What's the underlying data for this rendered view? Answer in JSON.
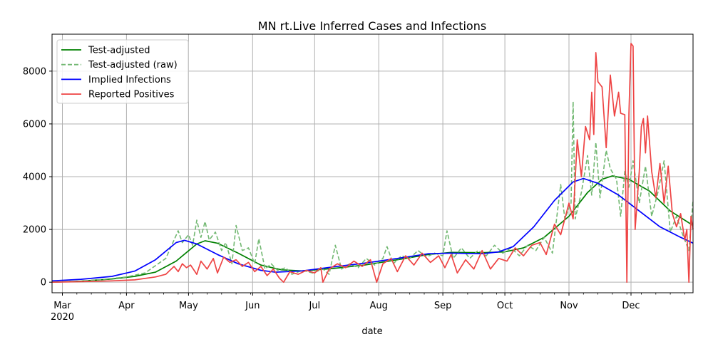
{
  "chart_data": {
    "type": "line",
    "title": "MN rt.Live Inferred Cases and Infections",
    "xlabel": "date",
    "ylabel": "",
    "x_start": "2020-02-25",
    "x_end": "2020-12-31",
    "ylim": [
      -400,
      9400
    ],
    "yticks": [
      0,
      2000,
      4000,
      6000,
      8000
    ],
    "xticks": [
      {
        "date": "2020-03-01",
        "label": "Mar",
        "sublabel": "2020"
      },
      {
        "date": "2020-04-01",
        "label": "Apr"
      },
      {
        "date": "2020-05-01",
        "label": "May"
      },
      {
        "date": "2020-06-01",
        "label": "Jun"
      },
      {
        "date": "2020-07-01",
        "label": "Jul"
      },
      {
        "date": "2020-08-01",
        "label": "Aug"
      },
      {
        "date": "2020-09-01",
        "label": "Sep"
      },
      {
        "date": "2020-10-01",
        "label": "Oct"
      },
      {
        "date": "2020-11-01",
        "label": "Nov"
      },
      {
        "date": "2020-12-01",
        "label": "Dec"
      }
    ],
    "grid": true,
    "legend_position": "top-left",
    "series": [
      {
        "name": "Test-adjusted",
        "color": "#008000",
        "style": "solid",
        "points": [
          [
            "2020-02-25",
            0
          ],
          [
            "2020-03-10",
            40
          ],
          [
            "2020-03-25",
            120
          ],
          [
            "2020-04-05",
            220
          ],
          [
            "2020-04-15",
            380
          ],
          [
            "2020-04-25",
            800
          ],
          [
            "2020-05-05",
            1450
          ],
          [
            "2020-05-09",
            1570
          ],
          [
            "2020-05-15",
            1480
          ],
          [
            "2020-05-25",
            1100
          ],
          [
            "2020-06-05",
            650
          ],
          [
            "2020-06-15",
            470
          ],
          [
            "2020-06-25",
            430
          ],
          [
            "2020-07-10",
            520
          ],
          [
            "2020-07-25",
            650
          ],
          [
            "2020-08-10",
            850
          ],
          [
            "2020-08-25",
            1050
          ],
          [
            "2020-09-05",
            1130
          ],
          [
            "2020-09-20",
            1120
          ],
          [
            "2020-10-01",
            1150
          ],
          [
            "2020-10-10",
            1300
          ],
          [
            "2020-10-20",
            1700
          ],
          [
            "2020-11-01",
            2500
          ],
          [
            "2020-11-10",
            3400
          ],
          [
            "2020-11-17",
            3900
          ],
          [
            "2020-11-22",
            4030
          ],
          [
            "2020-11-30",
            3900
          ],
          [
            "2020-12-10",
            3450
          ],
          [
            "2020-12-20",
            2700
          ],
          [
            "2020-12-31",
            2150
          ]
        ]
      },
      {
        "name": "Test-adjusted (raw)",
        "color": "#72b872",
        "style": "dashed",
        "points": [
          [
            "2020-02-25",
            0
          ],
          [
            "2020-03-10",
            30
          ],
          [
            "2020-03-20",
            100
          ],
          [
            "2020-04-01",
            200
          ],
          [
            "2020-04-10",
            350
          ],
          [
            "2020-04-20",
            900
          ],
          [
            "2020-04-26",
            1950
          ],
          [
            "2020-04-28",
            1500
          ],
          [
            "2020-05-01",
            1800
          ],
          [
            "2020-05-03",
            1400
          ],
          [
            "2020-05-05",
            2350
          ],
          [
            "2020-05-07",
            1700
          ],
          [
            "2020-05-09",
            2300
          ],
          [
            "2020-05-11",
            1600
          ],
          [
            "2020-05-14",
            1900
          ],
          [
            "2020-05-17",
            1200
          ],
          [
            "2020-05-19",
            1500
          ],
          [
            "2020-05-22",
            700
          ],
          [
            "2020-05-24",
            2150
          ],
          [
            "2020-05-27",
            1200
          ],
          [
            "2020-05-30",
            1300
          ],
          [
            "2020-06-02",
            700
          ],
          [
            "2020-06-04",
            1650
          ],
          [
            "2020-06-07",
            500
          ],
          [
            "2020-06-10",
            700
          ],
          [
            "2020-06-13",
            450
          ],
          [
            "2020-06-17",
            550
          ],
          [
            "2020-06-20",
            300
          ],
          [
            "2020-06-25",
            450
          ],
          [
            "2020-06-30",
            350
          ],
          [
            "2020-07-05",
            500
          ],
          [
            "2020-07-08",
            300
          ],
          [
            "2020-07-11",
            1400
          ],
          [
            "2020-07-14",
            500
          ],
          [
            "2020-07-18",
            700
          ],
          [
            "2020-07-22",
            550
          ],
          [
            "2020-07-26",
            900
          ],
          [
            "2020-07-30",
            650
          ],
          [
            "2020-08-03",
            900
          ],
          [
            "2020-08-05",
            1350
          ],
          [
            "2020-08-08",
            700
          ],
          [
            "2020-08-12",
            1000
          ],
          [
            "2020-08-16",
            900
          ],
          [
            "2020-08-20",
            1200
          ],
          [
            "2020-08-24",
            950
          ],
          [
            "2020-08-28",
            1100
          ],
          [
            "2020-09-01",
            1000
          ],
          [
            "2020-09-03",
            1950
          ],
          [
            "2020-09-06",
            900
          ],
          [
            "2020-09-10",
            1300
          ],
          [
            "2020-09-14",
            900
          ],
          [
            "2020-09-18",
            1200
          ],
          [
            "2020-09-22",
            1000
          ],
          [
            "2020-09-26",
            1400
          ],
          [
            "2020-09-30",
            1100
          ],
          [
            "2020-10-04",
            1300
          ],
          [
            "2020-10-08",
            1000
          ],
          [
            "2020-10-12",
            1400
          ],
          [
            "2020-10-16",
            1200
          ],
          [
            "2020-10-20",
            1700
          ],
          [
            "2020-10-24",
            1100
          ],
          [
            "2020-10-28",
            3700
          ],
          [
            "2020-10-30",
            2400
          ],
          [
            "2020-11-02",
            3000
          ],
          [
            "2020-11-03",
            6850
          ],
          [
            "2020-11-04",
            2400
          ],
          [
            "2020-11-07",
            3400
          ],
          [
            "2020-11-10",
            4800
          ],
          [
            "2020-11-12",
            3300
          ],
          [
            "2020-11-14",
            5300
          ],
          [
            "2020-11-16",
            3200
          ],
          [
            "2020-11-19",
            5000
          ],
          [
            "2020-11-21",
            4300
          ],
          [
            "2020-11-24",
            3900
          ],
          [
            "2020-11-26",
            2500
          ],
          [
            "2020-11-28",
            4200
          ],
          [
            "2020-11-30",
            3600
          ],
          [
            "2020-12-02",
            4600
          ],
          [
            "2020-12-05",
            3000
          ],
          [
            "2020-12-08",
            4400
          ],
          [
            "2020-12-11",
            2500
          ],
          [
            "2020-12-14",
            3400
          ],
          [
            "2020-12-17",
            4600
          ],
          [
            "2020-12-20",
            1900
          ],
          [
            "2020-12-23",
            2500
          ],
          [
            "2020-12-26",
            1800
          ],
          [
            "2020-12-29",
            1200
          ],
          [
            "2020-12-31",
            3100
          ]
        ]
      },
      {
        "name": "Implied Infections",
        "color": "#0000ff",
        "style": "solid",
        "points": [
          [
            "2020-02-25",
            50
          ],
          [
            "2020-03-10",
            110
          ],
          [
            "2020-03-25",
            220
          ],
          [
            "2020-04-05",
            420
          ],
          [
            "2020-04-15",
            850
          ],
          [
            "2020-04-25",
            1500
          ],
          [
            "2020-04-29",
            1590
          ],
          [
            "2020-05-05",
            1450
          ],
          [
            "2020-05-15",
            1050
          ],
          [
            "2020-05-25",
            700
          ],
          [
            "2020-06-05",
            450
          ],
          [
            "2020-06-12",
            380
          ],
          [
            "2020-06-25",
            430
          ],
          [
            "2020-07-10",
            580
          ],
          [
            "2020-07-25",
            720
          ],
          [
            "2020-08-10",
            900
          ],
          [
            "2020-08-25",
            1080
          ],
          [
            "2020-09-05",
            1100
          ],
          [
            "2020-09-20",
            1080
          ],
          [
            "2020-09-28",
            1150
          ],
          [
            "2020-10-05",
            1350
          ],
          [
            "2020-10-15",
            2100
          ],
          [
            "2020-10-25",
            3100
          ],
          [
            "2020-11-03",
            3800
          ],
          [
            "2020-11-08",
            3930
          ],
          [
            "2020-11-15",
            3750
          ],
          [
            "2020-11-25",
            3300
          ],
          [
            "2020-12-05",
            2700
          ],
          [
            "2020-12-15",
            2100
          ],
          [
            "2020-12-25",
            1700
          ],
          [
            "2020-12-31",
            1480
          ]
        ]
      },
      {
        "name": "Reported Positives",
        "color": "#ee4444",
        "style": "solid",
        "points": [
          [
            "2020-02-25",
            0
          ],
          [
            "2020-03-10",
            20
          ],
          [
            "2020-03-25",
            50
          ],
          [
            "2020-04-05",
            90
          ],
          [
            "2020-04-15",
            200
          ],
          [
            "2020-04-20",
            300
          ],
          [
            "2020-04-24",
            600
          ],
          [
            "2020-04-26",
            400
          ],
          [
            "2020-04-28",
            700
          ],
          [
            "2020-04-30",
            550
          ],
          [
            "2020-05-02",
            650
          ],
          [
            "2020-05-05",
            300
          ],
          [
            "2020-05-07",
            800
          ],
          [
            "2020-05-10",
            500
          ],
          [
            "2020-05-13",
            900
          ],
          [
            "2020-05-15",
            350
          ],
          [
            "2020-05-18",
            950
          ],
          [
            "2020-05-21",
            750
          ],
          [
            "2020-05-24",
            850
          ],
          [
            "2020-05-27",
            600
          ],
          [
            "2020-05-30",
            750
          ],
          [
            "2020-06-02",
            400
          ],
          [
            "2020-06-05",
            600
          ],
          [
            "2020-06-08",
            250
          ],
          [
            "2020-06-11",
            500
          ],
          [
            "2020-06-14",
            150
          ],
          [
            "2020-06-16",
            0
          ],
          [
            "2020-06-19",
            400
          ],
          [
            "2020-06-23",
            300
          ],
          [
            "2020-06-27",
            450
          ],
          [
            "2020-07-01",
            350
          ],
          [
            "2020-07-04",
            550
          ],
          [
            "2020-07-05",
            0
          ],
          [
            "2020-07-08",
            500
          ],
          [
            "2020-07-12",
            700
          ],
          [
            "2020-07-16",
            550
          ],
          [
            "2020-07-20",
            800
          ],
          [
            "2020-07-24",
            600
          ],
          [
            "2020-07-28",
            850
          ],
          [
            "2020-07-31",
            0
          ],
          [
            "2020-08-03",
            700
          ],
          [
            "2020-08-07",
            900
          ],
          [
            "2020-08-10",
            400
          ],
          [
            "2020-08-14",
            1000
          ],
          [
            "2020-08-18",
            650
          ],
          [
            "2020-08-22",
            1100
          ],
          [
            "2020-08-26",
            750
          ],
          [
            "2020-08-30",
            1000
          ],
          [
            "2020-09-02",
            550
          ],
          [
            "2020-09-05",
            1050
          ],
          [
            "2020-09-08",
            350
          ],
          [
            "2020-09-12",
            850
          ],
          [
            "2020-09-16",
            500
          ],
          [
            "2020-09-20",
            1200
          ],
          [
            "2020-09-24",
            500
          ],
          [
            "2020-09-28",
            900
          ],
          [
            "2020-10-02",
            800
          ],
          [
            "2020-10-06",
            1300
          ],
          [
            "2020-10-10",
            1000
          ],
          [
            "2020-10-14",
            1400
          ],
          [
            "2020-10-18",
            1500
          ],
          [
            "2020-10-21",
            1050
          ],
          [
            "2020-10-25",
            2200
          ],
          [
            "2020-10-28",
            1800
          ],
          [
            "2020-11-01",
            3000
          ],
          [
            "2020-11-03",
            2400
          ],
          [
            "2020-11-05",
            5400
          ],
          [
            "2020-11-07",
            4000
          ],
          [
            "2020-11-09",
            5900
          ],
          [
            "2020-11-11",
            5400
          ],
          [
            "2020-11-12",
            7200
          ],
          [
            "2020-11-13",
            5600
          ],
          [
            "2020-11-14",
            8700
          ],
          [
            "2020-11-15",
            7600
          ],
          [
            "2020-11-17",
            7400
          ],
          [
            "2020-11-19",
            5100
          ],
          [
            "2020-11-21",
            7850
          ],
          [
            "2020-11-23",
            6300
          ],
          [
            "2020-11-25",
            7200
          ],
          [
            "2020-11-26",
            6400
          ],
          [
            "2020-11-28",
            6350
          ],
          [
            "2020-11-29",
            0
          ],
          [
            "2020-11-30",
            6400
          ],
          [
            "2020-12-01",
            9050
          ],
          [
            "2020-12-02",
            8950
          ],
          [
            "2020-12-03",
            2000
          ],
          [
            "2020-12-05",
            4200
          ],
          [
            "2020-12-06",
            5900
          ],
          [
            "2020-12-07",
            6200
          ],
          [
            "2020-12-08",
            4900
          ],
          [
            "2020-12-09",
            6300
          ],
          [
            "2020-12-11",
            4200
          ],
          [
            "2020-12-13",
            3200
          ],
          [
            "2020-12-15",
            4500
          ],
          [
            "2020-12-17",
            3000
          ],
          [
            "2020-12-19",
            4400
          ],
          [
            "2020-12-21",
            2600
          ],
          [
            "2020-12-23",
            2100
          ],
          [
            "2020-12-25",
            2600
          ],
          [
            "2020-12-27",
            1600
          ],
          [
            "2020-12-28",
            2000
          ],
          [
            "2020-12-29",
            0
          ],
          [
            "2020-12-30",
            2500
          ],
          [
            "2020-12-31",
            2000
          ]
        ]
      }
    ]
  }
}
